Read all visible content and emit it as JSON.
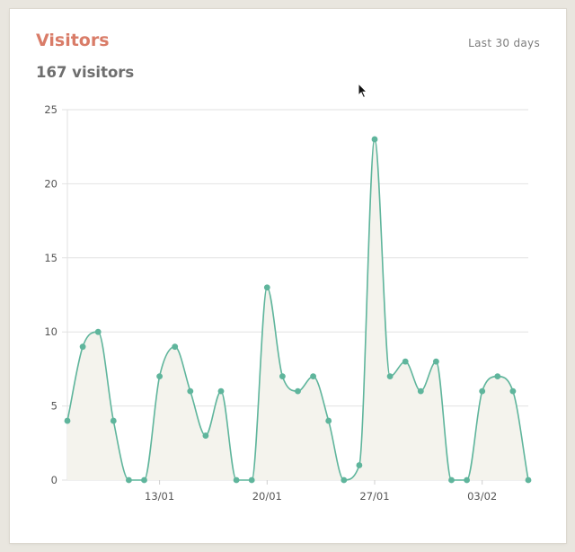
{
  "card": {
    "title": "Visitors",
    "range_label": "Last 30 days",
    "total_label": "167 visitors"
  },
  "colors": {
    "accent": "#d97c68",
    "line": "#5fb59c",
    "fill": "#f4f3ed",
    "grid": "#e2e2e2"
  },
  "chart_data": {
    "type": "area",
    "title": "Visitors",
    "xlabel": "",
    "ylabel": "",
    "ylim": [
      0,
      25
    ],
    "y_ticks": [
      0,
      5,
      10,
      15,
      20,
      25
    ],
    "x_tick_labels": [
      {
        "index": 6,
        "label": "13/01"
      },
      {
        "index": 13,
        "label": "20/01"
      },
      {
        "index": 20,
        "label": "27/01"
      },
      {
        "index": 27,
        "label": "03/02"
      }
    ],
    "grid": true,
    "series": [
      {
        "values": [
          4,
          9,
          10,
          4,
          0,
          0,
          7,
          9,
          6,
          3,
          6,
          0,
          0,
          13,
          7,
          6,
          7,
          4,
          0,
          1,
          23,
          7,
          8,
          6,
          8,
          0,
          0,
          6,
          7,
          6,
          0
        ]
      }
    ]
  }
}
